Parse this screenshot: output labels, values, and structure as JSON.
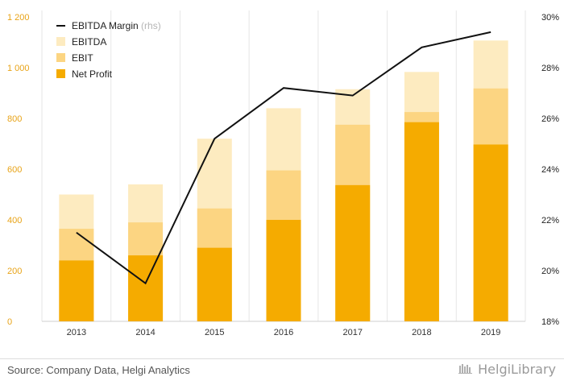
{
  "chart_data": {
    "type": "bar",
    "stacked": true,
    "categories": [
      "2013",
      "2014",
      "2015",
      "2016",
      "2017",
      "2018",
      "2019"
    ],
    "series": [
      {
        "name": "Net Profit",
        "values": [
          240,
          260,
          290,
          400,
          537,
          785,
          697
        ],
        "color": "#F5AB00"
      },
      {
        "name": "EBIT",
        "values": [
          365,
          390,
          445,
          595,
          775,
          825,
          918
        ],
        "color": "#FCD582"
      },
      {
        "name": "EBITDA",
        "values": [
          500,
          540,
          720,
          840,
          915,
          983,
          1107
        ],
        "color": "#FDEBC0"
      }
    ],
    "line_series": {
      "name": "EBITDA Margin",
      "axis_note": "(rhs)",
      "values": [
        21.5,
        19.5,
        25.2,
        27.2,
        26.9,
        28.8,
        29.4
      ],
      "color": "#111111"
    },
    "y_left": {
      "ylim": [
        0,
        1200
      ],
      "ticks": [
        0,
        200,
        400,
        600,
        800,
        1000,
        1200
      ],
      "tick_labels": [
        "0",
        "200",
        "400",
        "600",
        "800",
        "1 000",
        "1 200"
      ]
    },
    "y_right": {
      "ylim": [
        18,
        30
      ],
      "ticks": [
        18,
        20,
        22,
        24,
        26,
        28,
        30
      ],
      "tick_labels": [
        "18%",
        "20%",
        "22%",
        "24%",
        "26%",
        "28%",
        "30%"
      ]
    },
    "legend": [
      {
        "label": "EBITDA Margin",
        "note": "(rhs)",
        "kind": "line",
        "color": "#111111"
      },
      {
        "label": "EBITDA",
        "kind": "box",
        "color": "#FDEBC0"
      },
      {
        "label": "EBIT",
        "kind": "box",
        "color": "#FCD582"
      },
      {
        "label": "Net Profit",
        "kind": "box",
        "color": "#F5AB00"
      }
    ],
    "legend_position": "top-left",
    "grid": "vertical",
    "accent_tick_color": "#E8A317"
  },
  "footer": {
    "source": "Source: Company Data, Helgi Analytics",
    "brand": "HelgiLibrary"
  }
}
